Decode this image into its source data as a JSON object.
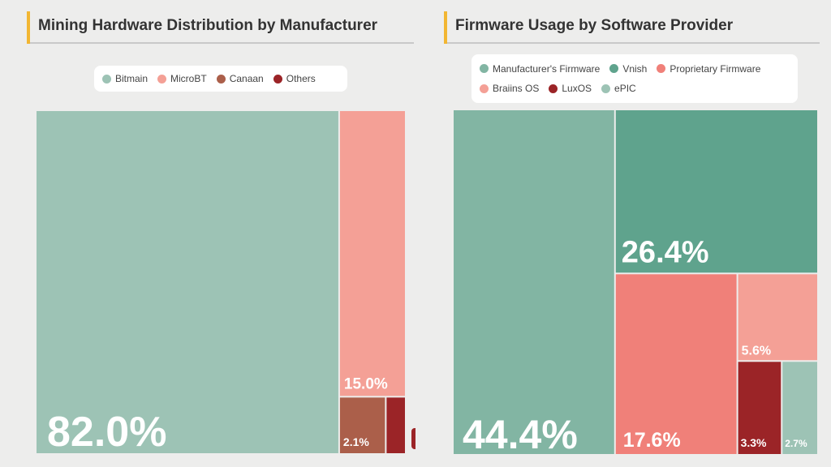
{
  "charts": {
    "left": {
      "title": "Mining Hardware Distribution by Manufacturer",
      "accent_color": "#f2b632",
      "legend": [
        {
          "label": "Bitmain",
          "color": "#9dc3b5"
        },
        {
          "label": "MicroBT",
          "color": "#f4a096"
        },
        {
          "label": "Canaan",
          "color": "#ab5f4a"
        },
        {
          "label": "Others",
          "color": "#9b2427"
        }
      ]
    },
    "right": {
      "title": "Firmware Usage by Software Provider",
      "accent_color": "#f2b632",
      "legend": [
        {
          "label": "Manufacturer's Firmware",
          "color": "#82b5a3"
        },
        {
          "label": "Vnish",
          "color": "#5fa38d"
        },
        {
          "label": "Proprietary Firmware",
          "color": "#f08079"
        },
        {
          "label": "Braiins OS",
          "color": "#f4a096"
        },
        {
          "label": "LuxOS",
          "color": "#9b2427"
        },
        {
          "label": "ePIC",
          "color": "#9dc3b5"
        }
      ]
    }
  },
  "chart_data": [
    {
      "type": "treemap",
      "title": "Mining Hardware Distribution by Manufacturer",
      "series": [
        {
          "name": "Bitmain",
          "value": 82.0,
          "label": "82.0%",
          "color": "#9dc3b5"
        },
        {
          "name": "MicroBT",
          "value": 15.0,
          "label": "15.0%",
          "color": "#f4a096"
        },
        {
          "name": "Canaan",
          "value": 2.1,
          "label": "2.1%",
          "color": "#ab5f4a"
        },
        {
          "name": "Others",
          "value": 0.9,
          "label": "0.9%",
          "color": "#9b2427"
        }
      ],
      "legend_position": "top"
    },
    {
      "type": "treemap",
      "title": "Firmware Usage by Software Provider",
      "series": [
        {
          "name": "Manufacturer's Firmware",
          "value": 44.4,
          "label": "44.4%",
          "color": "#82b5a3"
        },
        {
          "name": "Vnish",
          "value": 26.4,
          "label": "26.4%",
          "color": "#5fa38d"
        },
        {
          "name": "Proprietary Firmware",
          "value": 17.6,
          "label": "17.6%",
          "color": "#f08079"
        },
        {
          "name": "Braiins OS",
          "value": 5.6,
          "label": "5.6%",
          "color": "#f4a096"
        },
        {
          "name": "LuxOS",
          "value": 3.3,
          "label": "3.3%",
          "color": "#9b2427"
        },
        {
          "name": "ePIC",
          "value": 2.7,
          "label": "2.7%",
          "color": "#9dc3b5"
        }
      ],
      "legend_position": "top"
    }
  ]
}
